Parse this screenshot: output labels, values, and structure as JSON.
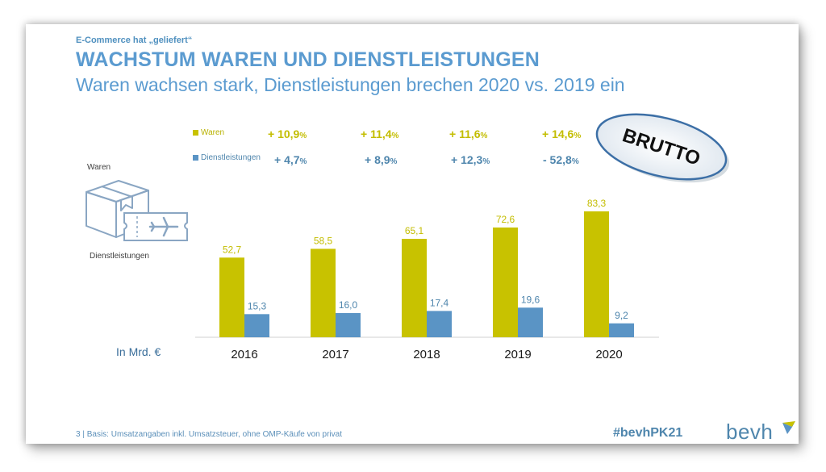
{
  "kicker": "E-Commerce hat „geliefert“",
  "title": "WACHSTUM WAREN UND DIENSTLEISTUNGEN",
  "subtitle": "Waren wachsen stark, Dienstleistungen brechen 2020 vs. 2019 ein",
  "stamp_text": "BRUTTO",
  "icon_labels": {
    "waren": "Waren",
    "dienst": "Dienstleistungen"
  },
  "unit_label": "In Mrd. €",
  "footer": "3 |  Basis: Umsatzangaben inkl. Umsatzsteuer, ohne OMP-Käufe von privat",
  "hashtag": "#bevhPK21",
  "brand": "bevh",
  "colors": {
    "waren": "#c8c200",
    "dienst": "#5a94c5",
    "accent": "#5b9bd0"
  },
  "icons": {
    "waren": "box-icon",
    "dienst": "ticket-plane-icon",
    "brand": "bevh-logo-icon"
  },
  "growth": {
    "waren": [
      {
        "num": "+ 10,9",
        "pct": "%"
      },
      {
        "num": "+ 11,4",
        "pct": "%"
      },
      {
        "num": "+ 11,6",
        "pct": "%"
      },
      {
        "num": "+ 14,6",
        "pct": "%"
      }
    ],
    "dienst": [
      {
        "num": "+ 4,7",
        "pct": "%"
      },
      {
        "num": "+ 8,9",
        "pct": "%"
      },
      {
        "num": "+ 12,3",
        "pct": "%"
      },
      {
        "num": "- 52,8",
        "pct": "%"
      }
    ]
  },
  "chart_data": {
    "type": "bar",
    "categories": [
      "2016",
      "2017",
      "2018",
      "2019",
      "2020"
    ],
    "series": [
      {
        "name": "Waren",
        "values": [
          52.7,
          58.5,
          65.1,
          72.6,
          83.3
        ],
        "labels": [
          "52,7",
          "58,5",
          "65,1",
          "72,6",
          "83,3"
        ]
      },
      {
        "name": "Dienstleistungen",
        "values": [
          15.3,
          16.0,
          17.4,
          19.6,
          9.2
        ],
        "labels": [
          "15,3",
          "16,0",
          "17,4",
          "19,6",
          "9,2"
        ]
      }
    ],
    "ylim": [
      0,
      95
    ],
    "grid": false,
    "legend": "top"
  }
}
